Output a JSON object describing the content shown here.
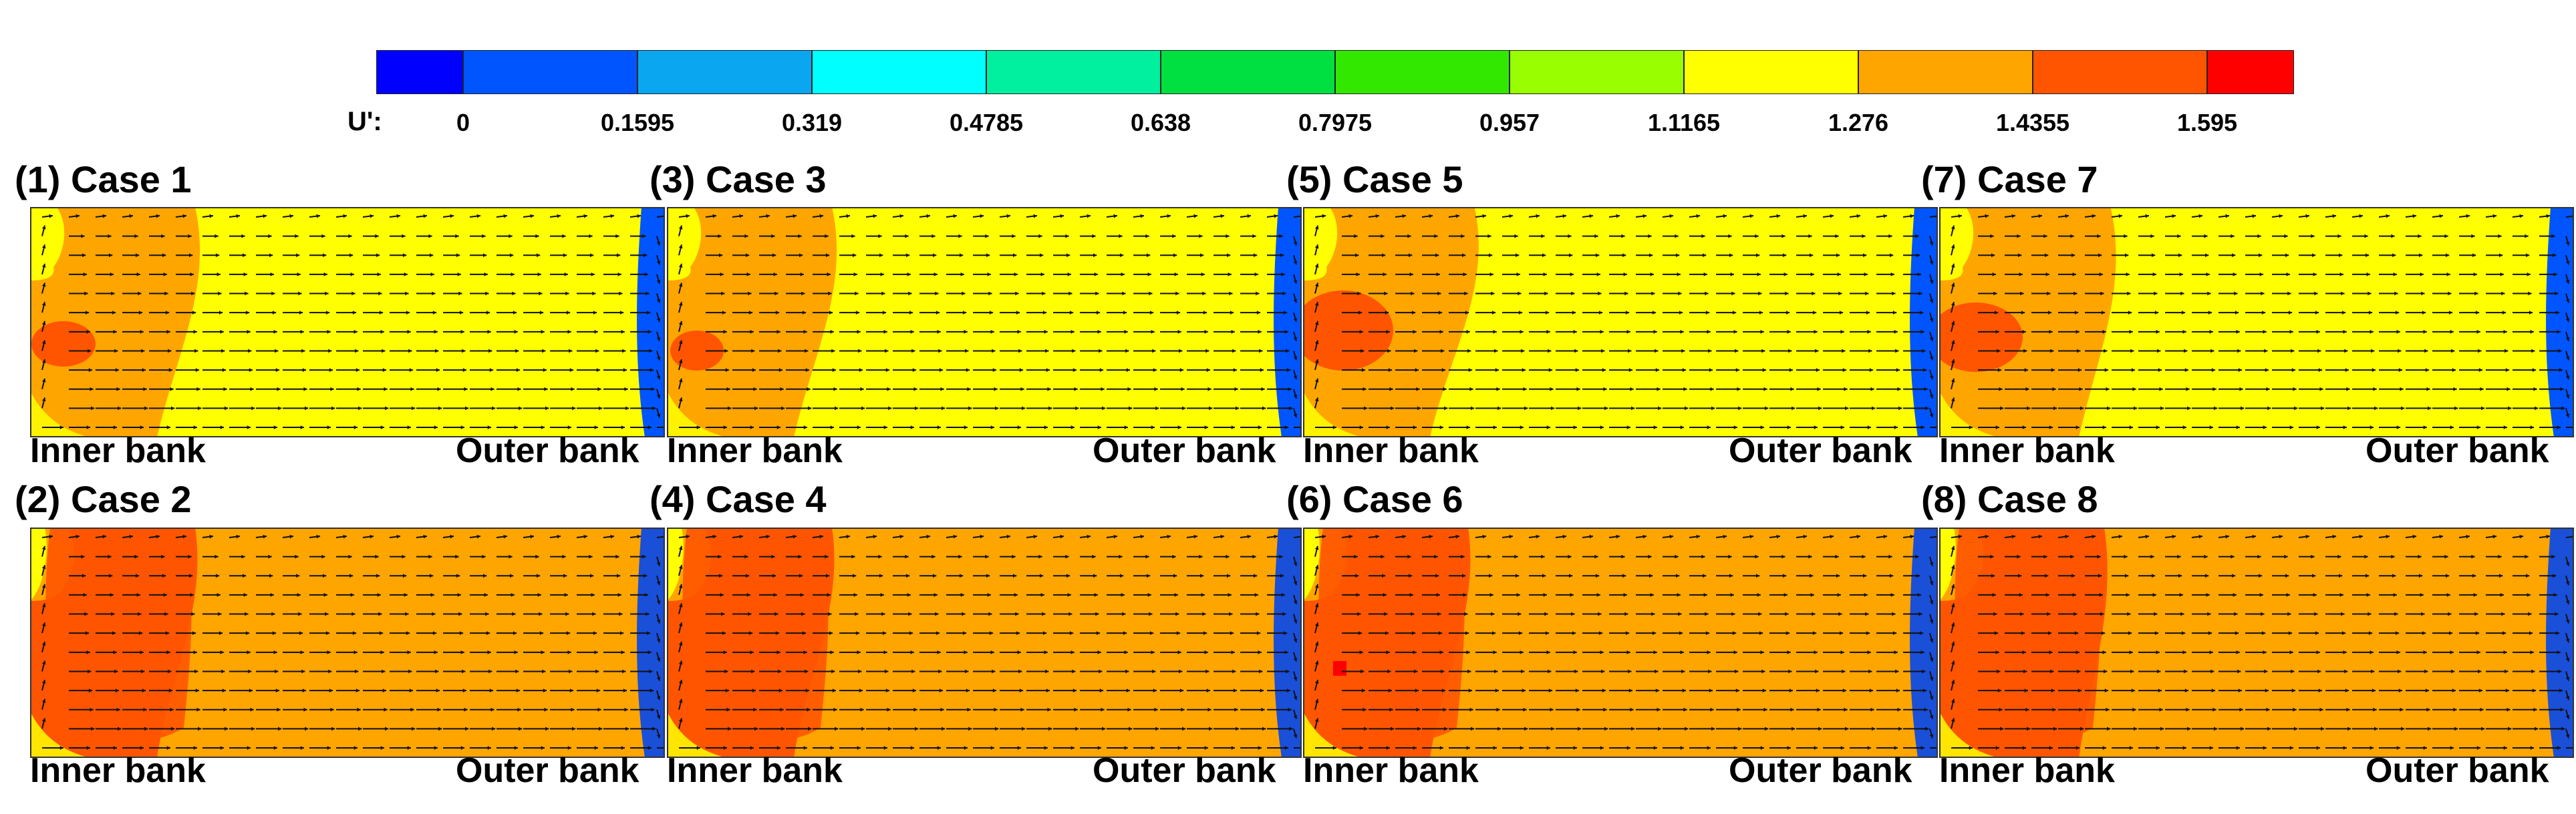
{
  "colorbar": {
    "label": "U':",
    "ticks": [
      "0",
      "0.1595",
      "0.319",
      "0.4785",
      "0.638",
      "0.7975",
      "0.957",
      "1.1165",
      "1.276",
      "1.4355",
      "1.595"
    ],
    "colors": [
      "#0000ff",
      "#0055ff",
      "#0aa6f0",
      "#00ffff",
      "#00f0a0",
      "#00e040",
      "#33e800",
      "#99ff00",
      "#ffff00",
      "#ffa500",
      "#ff5500",
      "#ff0000"
    ]
  },
  "bank_labels": {
    "inner": "Inner bank",
    "outer": "Outer bank"
  },
  "panels": [
    {
      "title": "(1) Case 1"
    },
    {
      "title": "(3) Case 3"
    },
    {
      "title": "(5) Case 5"
    },
    {
      "title": "(7) Case 7"
    },
    {
      "title": "(2) Case 2"
    },
    {
      "title": "(4) Case 4"
    },
    {
      "title": "(6) Case 6"
    },
    {
      "title": "(8) Case 8"
    }
  ]
}
